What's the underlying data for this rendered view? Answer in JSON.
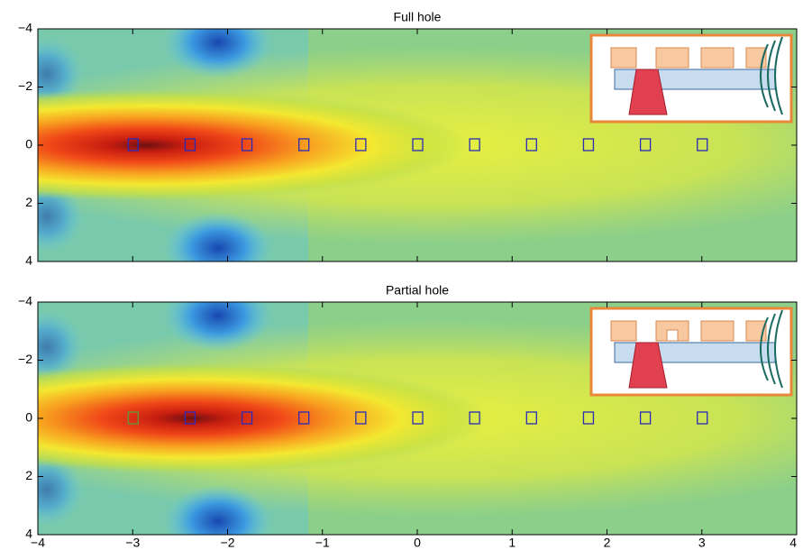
{
  "chart_data": [
    {
      "type": "heatmap",
      "title": "Full hole",
      "xlim": [
        -4,
        4
      ],
      "ylim": [
        -4,
        4
      ],
      "xticks": [
        {
          "value": -4,
          "label": "−4"
        },
        {
          "value": -3,
          "label": "−3"
        },
        {
          "value": -2,
          "label": "−2"
        },
        {
          "value": -1,
          "label": "−1"
        },
        0,
        1,
        2,
        3,
        4
      ],
      "yticks": [
        {
          "value": -4,
          "label": "−4"
        },
        {
          "value": -2,
          "label": "−2"
        },
        0,
        2,
        4
      ],
      "series": [
        {
          "color": "#2a2ab8",
          "x": [
            -3,
            -2.4,
            -1.8,
            -1.2,
            -0.6,
            0,
            0.6,
            1.2,
            1.8,
            2.4,
            3
          ],
          "y": [
            0,
            0,
            0,
            0,
            0,
            0,
            0,
            0,
            0,
            0,
            0
          ]
        }
      ]
    },
    {
      "type": "heatmap",
      "title": "Partial hole",
      "xlim": [
        -4,
        4
      ],
      "ylim": [
        -4,
        4
      ],
      "xticks": [
        {
          "value": -4,
          "label": "−4"
        },
        {
          "value": -3,
          "label": "−3"
        },
        {
          "value": -2,
          "label": "−2"
        },
        {
          "value": -1,
          "label": "−1"
        },
        0,
        1,
        2,
        3,
        4
      ],
      "yticks": [
        {
          "value": -4,
          "label": "−4"
        },
        {
          "value": -2,
          "label": "−2"
        },
        0,
        2,
        4
      ],
      "series": [
        {
          "color": "#5e9a3c",
          "x": [
            -3
          ],
          "y": [
            0
          ]
        },
        {
          "color": "#2a2ab8",
          "x": [
            -2.4,
            -1.8,
            -1.2,
            -0.6,
            0,
            0.6,
            1.2,
            1.8,
            2.4,
            3
          ],
          "y": [
            0,
            0,
            0,
            0,
            0,
            0,
            0,
            0,
            0,
            0
          ]
        }
      ]
    }
  ]
}
